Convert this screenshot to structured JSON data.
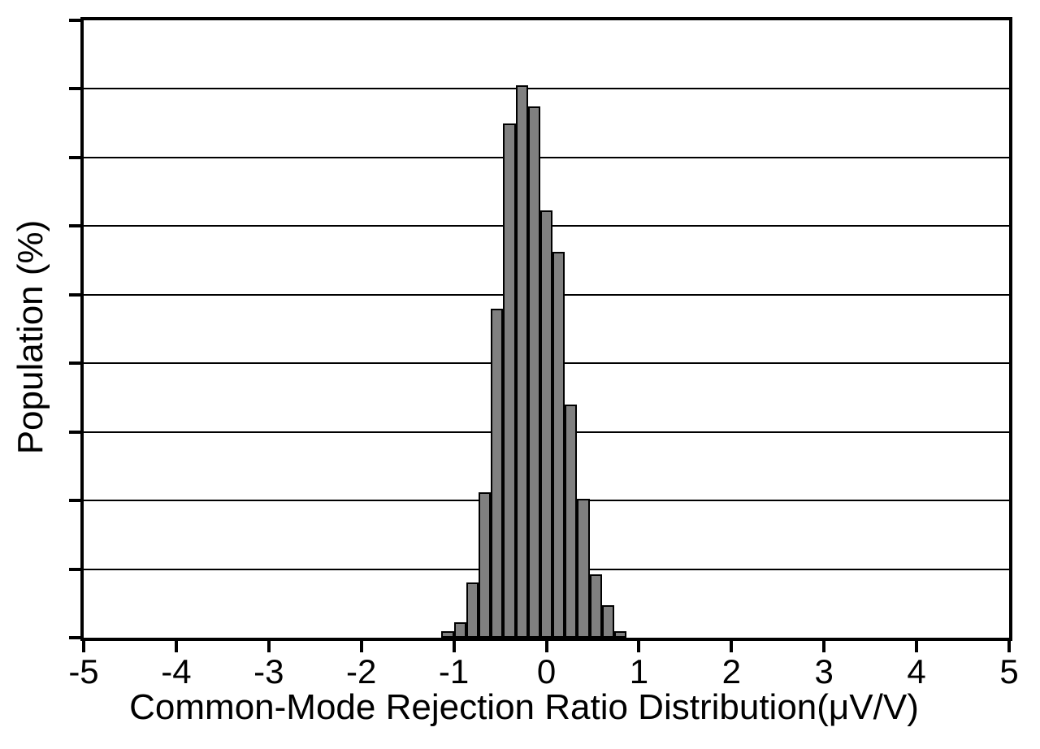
{
  "chart_data": {
    "type": "bar",
    "subtype": "histogram",
    "title": "",
    "xlabel": "Common-Mode Rejection Ratio Distribution(μV/V)",
    "ylabel": "Population (%)",
    "xlim": [
      -5,
      5
    ],
    "ylim": [
      0,
      18
    ],
    "x_tick_labels": [
      "-5",
      "-4",
      "-3",
      "-2",
      "-1",
      "0",
      "1",
      "2",
      "3",
      "4",
      "5"
    ],
    "x_tick_values": [
      -5,
      -4,
      -3,
      -2,
      -1,
      0,
      1,
      2,
      3,
      4,
      5
    ],
    "y_gridline_step": 2,
    "y_divisions": 9,
    "grid": "horizontal-only",
    "legend": "none",
    "bin_width": 0.1333,
    "bin_left_edges": [
      -1.1333,
      -1.0,
      -0.8667,
      -0.7333,
      -0.6,
      -0.4667,
      -0.3333,
      -0.2,
      -0.0667,
      0.0667,
      0.2,
      0.3333,
      0.4667,
      0.6,
      0.7333
    ],
    "values": [
      0.2,
      0.45,
      1.6,
      4.25,
      9.6,
      15.0,
      16.1,
      15.5,
      12.45,
      11.25,
      6.8,
      4.05,
      1.85,
      0.95,
      0.2
    ],
    "bar_fill_color": "#808080",
    "bar_border_color": "#000000",
    "axis_color": "#000000",
    "background_color": "#ffffff"
  },
  "layout_note_values_visible_only": true
}
